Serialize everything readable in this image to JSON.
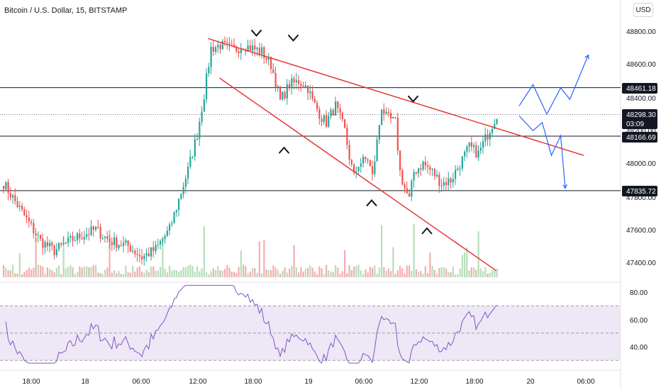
{
  "header": {
    "title": "Bitcoin / U.S. Dollar, 15, BITSTAMP",
    "currency": "USD"
  },
  "price_axis": {
    "ticks": [
      "48800.00",
      "48600.00",
      "48400.00",
      "48000.00",
      "47800.00",
      "47600.00",
      "47400.00"
    ],
    "tag_current_price": "48298.30",
    "tag_countdown": "03:09",
    "tag_hidden_behind": "48200.00"
  },
  "levels": [
    {
      "label": "48461.18",
      "value": 48461.18
    },
    {
      "label": "48166.69",
      "value": 48166.69
    },
    {
      "label": "47835.72",
      "value": 47835.72
    }
  ],
  "rsi_axis": {
    "ticks": [
      "80.00",
      "60.00",
      "40.00"
    ]
  },
  "time_axis": {
    "ticks": [
      "18:00",
      "18",
      "06:00",
      "12:00",
      "18:00",
      "19",
      "06:00",
      "12:00",
      "18:00",
      "20",
      "06:00"
    ]
  },
  "colors": {
    "up": "#26a69a",
    "down": "#ef5350",
    "trendline": "#e53935",
    "projection": "#2962ff",
    "rsi_line": "#7e57c2",
    "rsi_band": "#ede7f6"
  },
  "chart_data": {
    "type": "candlestick",
    "symbol": "Bitcoin / U.S. Dollar",
    "interval": "15",
    "exchange": "BITSTAMP",
    "ohlc_close_waypoints": [
      [
        0,
        47880
      ],
      [
        10,
        47660
      ],
      [
        16,
        47530
      ],
      [
        22,
        47470
      ],
      [
        30,
        47540
      ],
      [
        40,
        47600
      ],
      [
        46,
        47530
      ],
      [
        54,
        47500
      ],
      [
        60,
        47430
      ],
      [
        66,
        47480
      ],
      [
        72,
        47600
      ],
      [
        76,
        47780
      ],
      [
        80,
        47960
      ],
      [
        84,
        48180
      ],
      [
        87,
        48420
      ],
      [
        90,
        48700
      ],
      [
        94,
        48720
      ],
      [
        100,
        48690
      ],
      [
        104,
        48720
      ],
      [
        108,
        48700
      ],
      [
        112,
        48680
      ],
      [
        116,
        48600
      ],
      [
        118,
        48500
      ],
      [
        120,
        48380
      ],
      [
        124,
        48480
      ],
      [
        128,
        48500
      ],
      [
        132,
        48460
      ],
      [
        134,
        48380
      ],
      [
        138,
        48280
      ],
      [
        140,
        48250
      ],
      [
        144,
        48350
      ],
      [
        148,
        48200
      ],
      [
        150,
        48040
      ],
      [
        152,
        47920
      ],
      [
        154,
        48000
      ],
      [
        158,
        48030
      ],
      [
        160,
        47920
      ],
      [
        162,
        48130
      ],
      [
        164,
        48350
      ],
      [
        166,
        48280
      ],
      [
        170,
        48250
      ],
      [
        172,
        47950
      ],
      [
        174,
        47850
      ],
      [
        176,
        47780
      ],
      [
        178,
        47950
      ],
      [
        182,
        48000
      ],
      [
        186,
        47950
      ],
      [
        190,
        47880
      ],
      [
        194,
        47900
      ],
      [
        198,
        48000
      ],
      [
        202,
        48100
      ],
      [
        206,
        48060
      ],
      [
        210,
        48180
      ],
      [
        214,
        48300
      ]
    ],
    "volume_note": "volume histogram bars colored by candle direction",
    "indicators": [
      {
        "name": "RSI",
        "levels": [
          70,
          50,
          30
        ],
        "range": [
          20,
          90
        ]
      }
    ],
    "trendlines": [
      {
        "name": "upper-trendline",
        "from": [
          89,
          48760
        ],
        "to": [
          252,
          48050
        ]
      },
      {
        "name": "lower-trendline",
        "from": [
          94,
          48520
        ],
        "to": [
          214,
          47350
        ]
      }
    ],
    "markers": [
      {
        "type": "v",
        "bar": 110,
        "price": 48790
      },
      {
        "type": "v",
        "bar": 126,
        "price": 48760
      },
      {
        "type": "caret",
        "bar": 122,
        "price": 48080
      },
      {
        "type": "v",
        "bar": 178,
        "price": 48390
      },
      {
        "type": "caret",
        "bar": 160,
        "price": 47760
      },
      {
        "type": "caret",
        "bar": 184,
        "price": 47590
      }
    ],
    "projections": [
      {
        "direction": "up",
        "points": [
          [
            224,
            48350
          ],
          [
            230,
            48480
          ],
          [
            236,
            48300
          ],
          [
            242,
            48460
          ],
          [
            246,
            48390
          ],
          [
            254,
            48660
          ]
        ]
      },
      {
        "direction": "down",
        "points": [
          [
            224,
            48290
          ],
          [
            230,
            48200
          ],
          [
            234,
            48250
          ],
          [
            238,
            48050
          ],
          [
            242,
            48170
          ],
          [
            244,
            47850
          ]
        ]
      }
    ],
    "price_range": [
      47300,
      48900
    ],
    "grid": false
  }
}
